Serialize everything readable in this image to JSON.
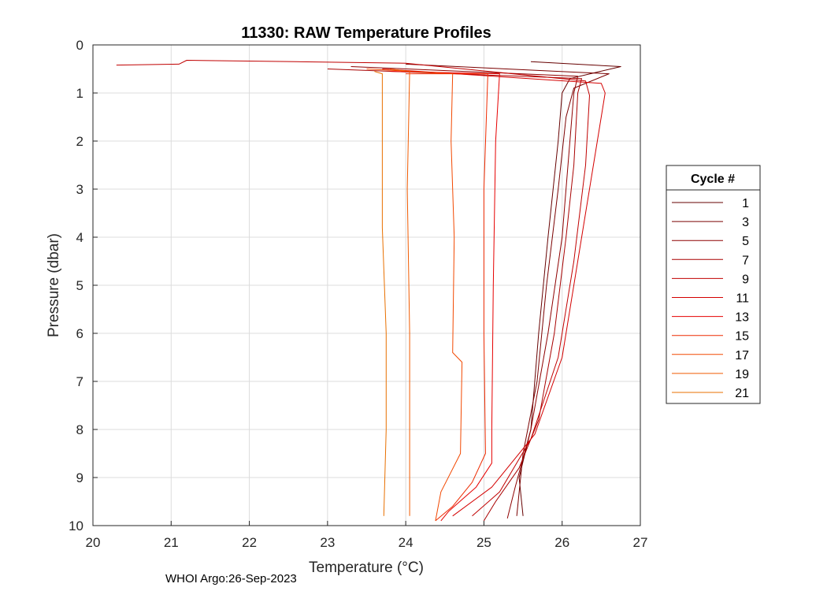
{
  "chart_data": {
    "type": "line",
    "title": "11330: RAW Temperature Profiles",
    "xlabel": "Temperature (°C)",
    "ylabel": "Pressure (dbar)",
    "xlim": [
      20,
      27
    ],
    "ylim": [
      0,
      10
    ],
    "y_reversed": true,
    "grid": true,
    "xticks": [
      "20",
      "21",
      "22",
      "23",
      "24",
      "25",
      "26",
      "27"
    ],
    "yticks": [
      "0",
      "1",
      "2",
      "3",
      "4",
      "5",
      "6",
      "7",
      "8",
      "9",
      "10"
    ],
    "legend": {
      "title": "Cycle #",
      "placement": "right"
    },
    "series": [
      {
        "name": "1",
        "color": "#660000",
        "points": [
          [
            25.6,
            0.35
          ],
          [
            26.75,
            0.45
          ],
          [
            26.1,
            0.7
          ],
          [
            26.0,
            1.0
          ],
          [
            25.95,
            2.0
          ],
          [
            25.82,
            4.0
          ],
          [
            25.7,
            6.0
          ],
          [
            25.6,
            8.0
          ],
          [
            25.45,
            9.0
          ],
          [
            25.5,
            9.8
          ]
        ]
      },
      {
        "name": "3",
        "color": "#7a0000",
        "points": [
          [
            24.0,
            0.4
          ],
          [
            26.6,
            0.6
          ],
          [
            26.15,
            0.9
          ],
          [
            26.05,
            1.5
          ],
          [
            25.95,
            3.0
          ],
          [
            25.8,
            5.0
          ],
          [
            25.68,
            7.0
          ],
          [
            25.5,
            8.5
          ],
          [
            25.42,
            9.8
          ]
        ]
      },
      {
        "name": "5",
        "color": "#8e0000",
        "points": [
          [
            23.3,
            0.45
          ],
          [
            26.2,
            0.65
          ],
          [
            26.15,
            1.0
          ],
          [
            26.1,
            2.0
          ],
          [
            26.0,
            4.0
          ],
          [
            25.82,
            6.0
          ],
          [
            25.6,
            8.0
          ],
          [
            25.4,
            9.2
          ],
          [
            25.3,
            9.85
          ]
        ]
      },
      {
        "name": "7",
        "color": "#a80000",
        "points": [
          [
            23.0,
            0.5
          ],
          [
            26.25,
            0.7
          ],
          [
            26.2,
            1.0
          ],
          [
            26.15,
            2.5
          ],
          [
            26.05,
            4.0
          ],
          [
            25.9,
            6.0
          ],
          [
            25.7,
            7.8
          ],
          [
            25.45,
            8.8
          ],
          [
            25.15,
            9.5
          ],
          [
            25.0,
            9.9
          ]
        ]
      },
      {
        "name": "9",
        "color": "#c00000",
        "points": [
          [
            20.3,
            0.42
          ],
          [
            21.1,
            0.4
          ],
          [
            21.2,
            0.32
          ],
          [
            22.6,
            0.35
          ],
          [
            24.0,
            0.38
          ],
          [
            26.3,
            0.75
          ],
          [
            26.35,
            1.05
          ],
          [
            26.3,
            2.5
          ],
          [
            26.15,
            4.5
          ],
          [
            25.95,
            6.5
          ],
          [
            25.6,
            8.2
          ],
          [
            25.2,
            9.3
          ],
          [
            24.85,
            9.8
          ]
        ]
      },
      {
        "name": "11",
        "color": "#d40000",
        "points": [
          [
            23.7,
            0.5
          ],
          [
            26.5,
            0.8
          ],
          [
            26.55,
            1.0
          ],
          [
            26.45,
            2.0
          ],
          [
            26.25,
            4.0
          ],
          [
            26.0,
            6.5
          ],
          [
            25.65,
            8.1
          ],
          [
            25.1,
            9.2
          ],
          [
            24.6,
            9.8
          ]
        ]
      },
      {
        "name": "13",
        "color": "#e60000",
        "points": [
          [
            23.8,
            0.55
          ],
          [
            25.2,
            0.6
          ],
          [
            25.15,
            2.0
          ],
          [
            25.12,
            5.0
          ],
          [
            25.1,
            8.0
          ],
          [
            25.1,
            8.7
          ],
          [
            24.9,
            9.2
          ],
          [
            24.55,
            9.7
          ],
          [
            24.45,
            9.9
          ]
        ]
      },
      {
        "name": "15",
        "color": "#ee2a00",
        "points": [
          [
            24.0,
            0.6
          ],
          [
            25.05,
            0.6
          ],
          [
            25.0,
            3.0
          ],
          [
            25.0,
            6.0
          ],
          [
            25.02,
            8.5
          ],
          [
            24.85,
            9.1
          ],
          [
            24.6,
            9.6
          ],
          [
            24.38,
            9.9
          ]
        ]
      },
      {
        "name": "17",
        "color": "#f24800",
        "points": [
          [
            23.5,
            0.5
          ],
          [
            24.6,
            0.6
          ],
          [
            24.58,
            2.0
          ],
          [
            24.62,
            4.0
          ],
          [
            24.6,
            6.4
          ],
          [
            24.72,
            6.6
          ],
          [
            24.7,
            8.5
          ],
          [
            24.45,
            9.3
          ],
          [
            24.38,
            9.9
          ]
        ]
      },
      {
        "name": "19",
        "color": "#f05a00",
        "points": [
          [
            23.8,
            0.5
          ],
          [
            24.05,
            0.55
          ],
          [
            24.02,
            3.0
          ],
          [
            24.05,
            6.0
          ],
          [
            24.05,
            9.0
          ],
          [
            24.05,
            9.8
          ]
        ]
      },
      {
        "name": "21",
        "color": "#e87000",
        "points": [
          [
            23.6,
            0.55
          ],
          [
            23.7,
            0.6
          ],
          [
            23.7,
            3.8
          ],
          [
            23.75,
            6.0
          ],
          [
            23.75,
            8.0
          ],
          [
            23.72,
            9.8
          ]
        ]
      }
    ]
  },
  "footer_text": "WHOI Argo:26-Sep-2023"
}
